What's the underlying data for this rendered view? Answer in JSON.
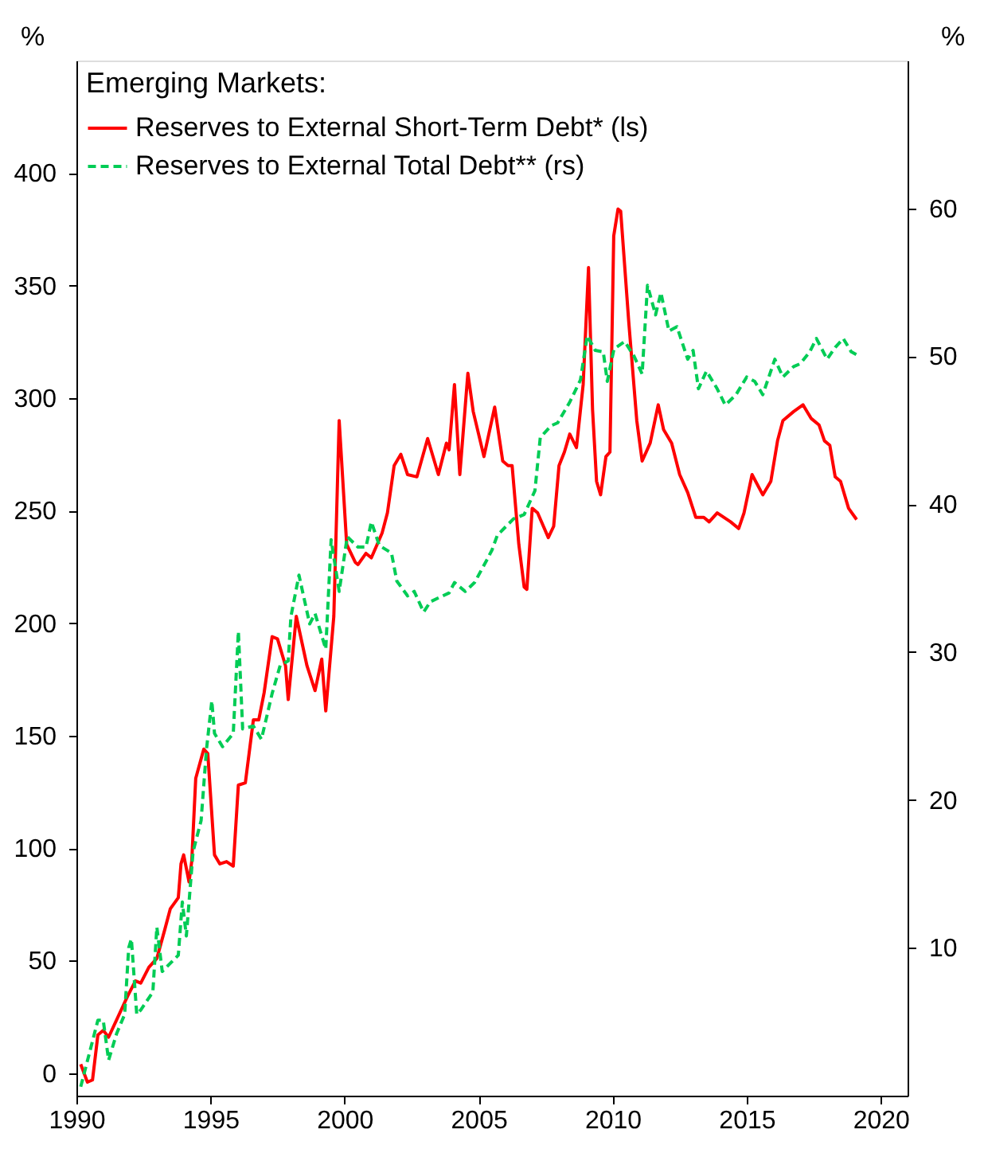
{
  "chart_data": {
    "type": "line",
    "ylabel": "%",
    "y2label": "%",
    "legend_title": "Emerging Markets:",
    "legend": "top left",
    "grid": false,
    "xlim": [
      1990,
      2021
    ],
    "xticks": [
      1990,
      1995,
      2000,
      2005,
      2010,
      2015,
      2020
    ],
    "ylim": [
      -10,
      450
    ],
    "yticks": [
      0,
      50,
      100,
      150,
      200,
      250,
      300,
      350,
      400
    ],
    "y2lim": [
      0,
      70
    ],
    "y2ticks": [
      10,
      20,
      30,
      40,
      50,
      60
    ],
    "series": [
      {
        "name": "Reserves to External Short-Term Debt* (ls)",
        "color": "#ff0000",
        "line_style": "solid",
        "axis": "y",
        "x": [
          1990.16,
          1990.41,
          1990.6,
          1990.8,
          1991.0,
          1991.2,
          1991.9,
          1992.2,
          1992.4,
          1992.7,
          1993.0,
          1993.3,
          1993.5,
          1993.8,
          1993.9,
          1994.0,
          1994.2,
          1994.3,
          1994.45,
          1994.75,
          1994.9,
          1995.15,
          1995.35,
          1995.6,
          1995.85,
          1996.04,
          1996.3,
          1996.6,
          1996.8,
          1997.0,
          1997.3,
          1997.5,
          1997.8,
          1997.9,
          1998.2,
          1998.6,
          1998.9,
          1999.15,
          1999.3,
          1999.6,
          1999.8,
          2000.08,
          2000.4,
          2000.5,
          2000.8,
          2001.0,
          2001.4,
          2001.6,
          2001.85,
          2002.1,
          2002.35,
          2002.7,
          2003.1,
          2003.5,
          2003.8,
          2003.9,
          2004.1,
          2004.3,
          2004.6,
          2004.8,
          2005.2,
          2005.6,
          2005.9,
          2006.1,
          2006.25,
          2006.5,
          2006.7,
          2006.8,
          2007.0,
          2007.2,
          2007.6,
          2007.8,
          2008.0,
          2008.2,
          2008.4,
          2008.65,
          2008.9,
          2009.1,
          2009.25,
          2009.4,
          2009.55,
          2009.75,
          2009.9,
          2010.04,
          2010.2,
          2010.3,
          2010.6,
          2010.9,
          2011.1,
          2011.4,
          2011.7,
          2011.9,
          2012.2,
          2012.5,
          2012.8,
          2013.1,
          2013.4,
          2013.6,
          2013.9,
          2014.4,
          2014.7,
          2014.9,
          2015.2,
          2015.6,
          2015.9,
          2016.15,
          2016.35,
          2016.75,
          2017.1,
          2017.4,
          2017.7,
          2017.9,
          2018.1,
          2018.3,
          2018.5,
          2018.8,
          2019.1
        ],
        "values": [
          4,
          -4,
          -3,
          17,
          19,
          16,
          34,
          41,
          40,
          47,
          51,
          64,
          73,
          78,
          93,
          97,
          85,
          94,
          131,
          144,
          142,
          97,
          93,
          94,
          92,
          128,
          129,
          157,
          157,
          169,
          194,
          193,
          181,
          166,
          203,
          181,
          170,
          184,
          161,
          203,
          290,
          235,
          227,
          226,
          231,
          229,
          240,
          249,
          270,
          275,
          266,
          265,
          282,
          266,
          280,
          277,
          306,
          266,
          311,
          294,
          274,
          296,
          272,
          270,
          270,
          235,
          216,
          215,
          251,
          249,
          238,
          243,
          270,
          276,
          284,
          278,
          306,
          358,
          295,
          263,
          257,
          274,
          276,
          372,
          384,
          383,
          334,
          290,
          272,
          280,
          297,
          286,
          280,
          266,
          258,
          247,
          247,
          245,
          249,
          245,
          242,
          249,
          266,
          257,
          263,
          281,
          290,
          294,
          297,
          291,
          288,
          281,
          279,
          265,
          263,
          251,
          246
        ]
      },
      {
        "name": "Reserves to External Total Debt** (rs)",
        "color": "#00cc55",
        "line_style": "dashed",
        "axis": "y2",
        "x": [
          1990.16,
          1990.8,
          1991.0,
          1991.2,
          1991.5,
          1991.8,
          1991.95,
          1992.05,
          1992.25,
          1992.4,
          1992.85,
          1993.0,
          1993.2,
          1993.8,
          1993.95,
          1994.1,
          1994.35,
          1994.65,
          1994.85,
          1995.05,
          1995.15,
          1995.45,
          1995.85,
          1996.04,
          1996.2,
          1996.6,
          1996.9,
          1997.3,
          1997.6,
          1997.9,
          1998.0,
          1998.3,
          1998.7,
          1998.9,
          1999.3,
          1999.5,
          1999.8,
          2000.1,
          2000.5,
          2000.8,
          2001.0,
          2001.3,
          2001.75,
          2001.95,
          2002.35,
          2002.6,
          2002.95,
          2003.2,
          2003.9,
          2004.1,
          2004.5,
          2004.85,
          2005.3,
          2005.5,
          2005.7,
          2006.3,
          2006.7,
          2007.1,
          2007.3,
          2007.7,
          2007.95,
          2008.4,
          2008.8,
          2009.05,
          2009.35,
          2009.65,
          2009.8,
          2010.05,
          2010.45,
          2010.8,
          2011.1,
          2011.3,
          2011.6,
          2011.8,
          2012.1,
          2012.4,
          2012.8,
          2013.0,
          2013.2,
          2013.5,
          2013.9,
          2014.2,
          2014.6,
          2015.0,
          2015.3,
          2015.6,
          2016.05,
          2016.35,
          2016.75,
          2017.0,
          2017.35,
          2017.6,
          2018.0,
          2018.3,
          2018.6,
          2018.9,
          2019.1
        ],
        "values": [
          0.6,
          5.1,
          5.1,
          2.4,
          4.2,
          5.5,
          10,
          10.6,
          5.5,
          5.8,
          7.0,
          11.4,
          8.4,
          9.5,
          13.1,
          10.8,
          16.5,
          18.6,
          23.4,
          26.7,
          24.5,
          23.6,
          24.5,
          31.4,
          24.8,
          25,
          24.1,
          27.2,
          29.1,
          29.4,
          32.4,
          35.2,
          31.9,
          32.6,
          30.2,
          37.6,
          34.1,
          37.8,
          37.1,
          37.1,
          38.8,
          37.2,
          36.7,
          34.8,
          33.8,
          34.1,
          32.7,
          33.4,
          34.0,
          34.7,
          34.1,
          34.7,
          36.2,
          36.9,
          37.9,
          39.0,
          39.3,
          40.9,
          44.5,
          45.3,
          45.5,
          46.9,
          48.4,
          51.4,
          50.4,
          50.3,
          48.3,
          50.5,
          51.0,
          50.0,
          48.8,
          54.8,
          52.8,
          54.3,
          51.7,
          52.0,
          49.8,
          50.4,
          47.8,
          49.0,
          47.8,
          46.7,
          47.4,
          48.6,
          48.3,
          47.4,
          49.8,
          48.6,
          49.3,
          49.5,
          50.3,
          51.2,
          49.8,
          50.6,
          51.2,
          50.3,
          50.1
        ]
      }
    ]
  }
}
